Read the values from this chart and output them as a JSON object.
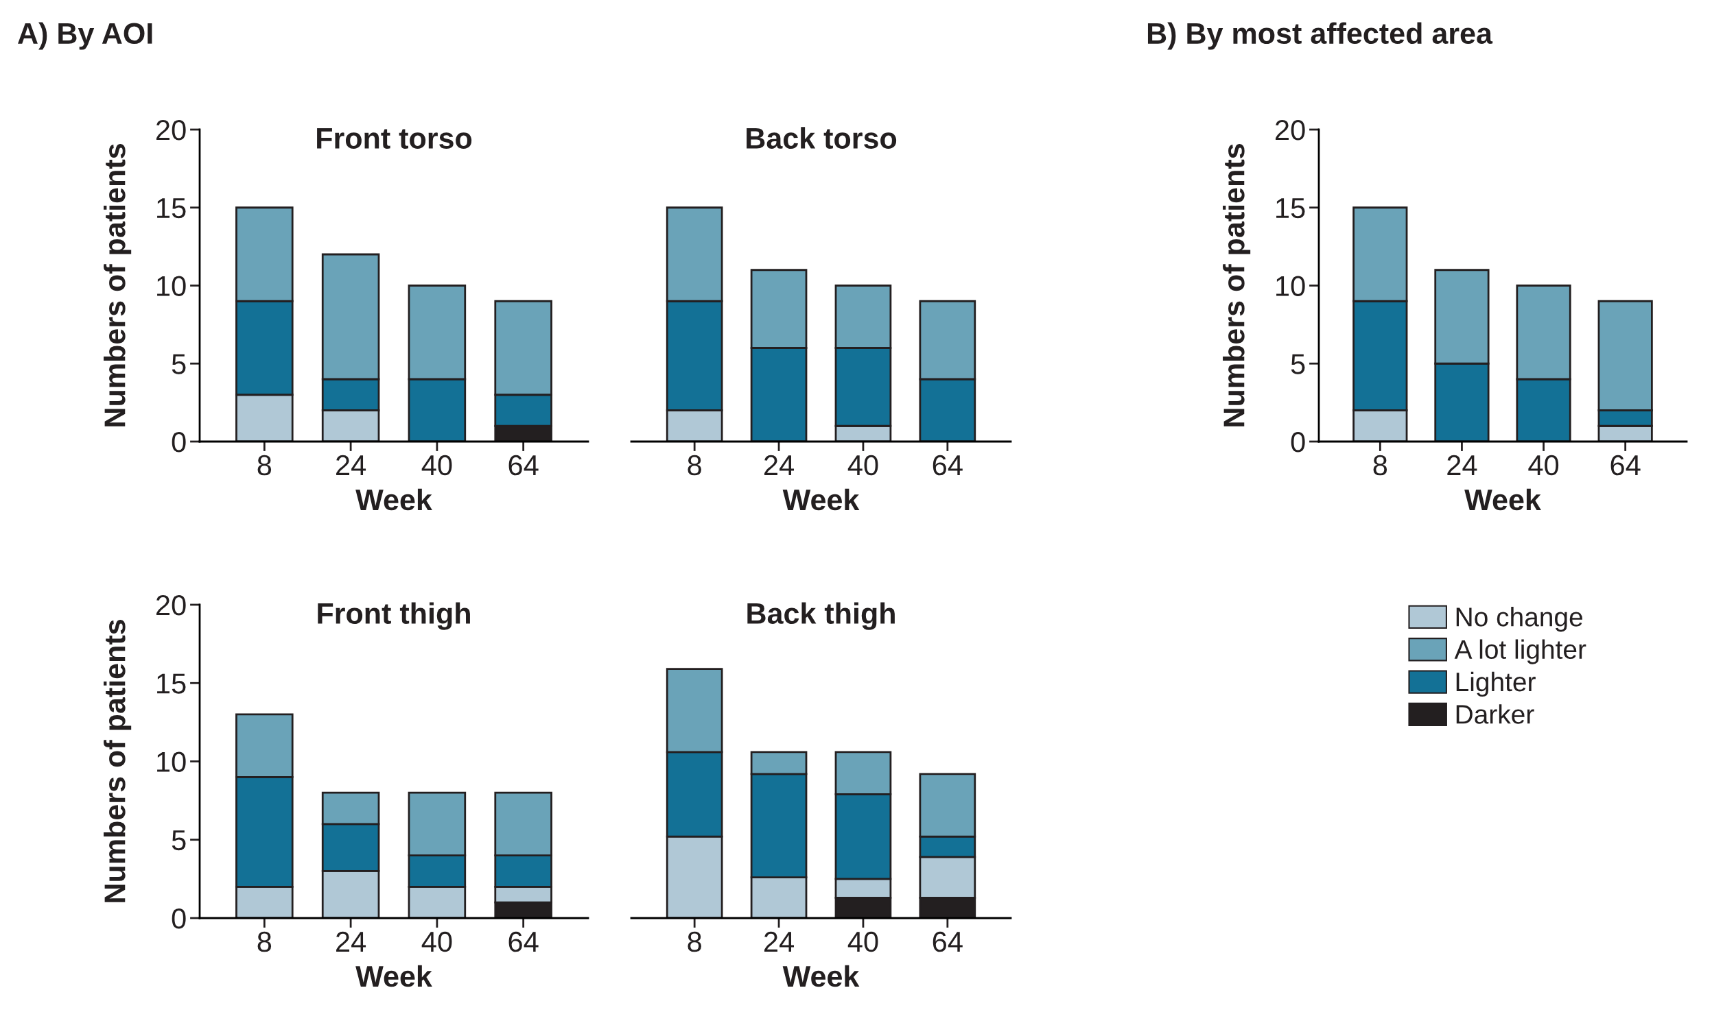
{
  "chart_data": [
    {
      "type": "bar",
      "stacked": true,
      "title": "Front torso",
      "xlabel": "Week",
      "ylabel": "Numbers of patients",
      "annotations": [
        "A) By AOI"
      ],
      "categories": [
        "8",
        "24",
        "40",
        "64"
      ],
      "ylim": [
        0,
        20
      ],
      "yticks": [
        0,
        5,
        10,
        15,
        20
      ],
      "grid": false,
      "legend": false,
      "series": [
        {
          "color": "#231f20",
          "values": [
            0,
            0,
            0,
            1
          ]
        },
        {
          "color": "#b0c8d6",
          "values": [
            3,
            2,
            0,
            0
          ]
        },
        {
          "color": "#137196",
          "values": [
            6,
            2,
            4,
            2
          ]
        },
        {
          "color": "#6aa3b8",
          "values": [
            6,
            8,
            6,
            6
          ]
        }
      ]
    },
    {
      "type": "bar",
      "stacked": true,
      "title": "Back torso",
      "xlabel": "Week",
      "categories": [
        "8",
        "24",
        "40",
        "64"
      ],
      "ylim": [
        0,
        20
      ],
      "yticks": [
        0,
        5,
        10,
        15,
        20
      ],
      "tick_labels": "x",
      "grid": false,
      "legend": false,
      "series": [
        {
          "color": "#231f20",
          "values": [
            0,
            0,
            0,
            0
          ]
        },
        {
          "color": "#b0c8d6",
          "values": [
            2,
            0,
            1,
            0
          ]
        },
        {
          "color": "#137196",
          "values": [
            7,
            6,
            5,
            4
          ]
        },
        {
          "color": "#6aa3b8",
          "values": [
            6,
            5,
            4,
            5
          ]
        }
      ]
    },
    {
      "type": "bar",
      "stacked": true,
      "title": "Front thigh",
      "xlabel": "Week",
      "ylabel": "Numbers of patients",
      "categories": [
        "8",
        "24",
        "40",
        "64"
      ],
      "ylim": [
        0,
        20
      ],
      "yticks": [
        0,
        5,
        10,
        15,
        20
      ],
      "grid": false,
      "legend": false,
      "series": [
        {
          "color": "#231f20",
          "values": [
            0,
            0,
            0,
            1
          ]
        },
        {
          "color": "#b0c8d6",
          "values": [
            2,
            3,
            2,
            1
          ]
        },
        {
          "color": "#137196",
          "values": [
            7,
            3,
            2,
            2
          ]
        },
        {
          "color": "#6aa3b8",
          "values": [
            4,
            2,
            4,
            4
          ]
        }
      ]
    },
    {
      "type": "bar",
      "stacked": true,
      "title": "Back thigh",
      "xlabel": "Week",
      "categories": [
        "8",
        "24",
        "40",
        "64"
      ],
      "ylim": [
        0,
        20
      ],
      "yticks": [
        0,
        5,
        10,
        15,
        20
      ],
      "tick_labels": "x",
      "grid": false,
      "legend": false,
      "series": [
        {
          "color": "#231f20",
          "values": [
            0,
            0,
            1.3,
            1.3
          ]
        },
        {
          "color": "#b0c8d6",
          "values": [
            5.2,
            2.6,
            1.2,
            2.6
          ]
        },
        {
          "color": "#137196",
          "values": [
            5.4,
            6.6,
            5.4,
            1.3
          ]
        },
        {
          "color": "#6aa3b8",
          "values": [
            5.3,
            1.4,
            2.7,
            4.0
          ]
        }
      ]
    },
    {
      "type": "bar",
      "stacked": true,
      "xlabel": "Week",
      "ylabel": "Numbers of patients",
      "annotations": [
        "B) By most affected area"
      ],
      "categories": [
        "8",
        "24",
        "40",
        "64"
      ],
      "ylim": [
        0,
        20
      ],
      "yticks": [
        0,
        5,
        10,
        15,
        20
      ],
      "grid": false,
      "legend": "bottom",
      "series": [
        {
          "name": "Darker",
          "color": "#231f20",
          "values": [
            0,
            0,
            0,
            0
          ]
        },
        {
          "name": "No change",
          "color": "#b0c8d6",
          "values": [
            2,
            0,
            0,
            1
          ]
        },
        {
          "name": "Lighter",
          "color": "#137196",
          "values": [
            7,
            5,
            4,
            1
          ]
        },
        {
          "name": "A lot lighter",
          "color": "#6aa3b8",
          "values": [
            6,
            6,
            6,
            7
          ]
        }
      ]
    }
  ]
}
